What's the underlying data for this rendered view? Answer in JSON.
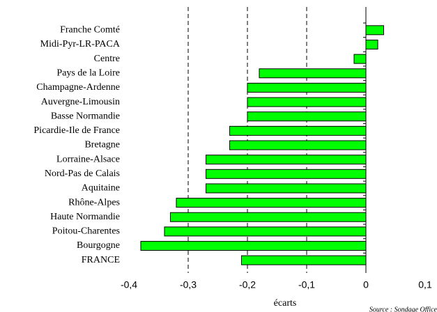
{
  "chart_data": {
    "type": "barh",
    "categories": [
      "Franche Comté",
      "Midi-Pyr-LR-PACA",
      "Centre",
      "Pays de la Loire",
      "Champagne-Ardenne",
      "Auvergne-Limousin",
      "Basse Normandie",
      "Picardie-Ile de France",
      "Bretagne",
      "Lorraine-Alsace",
      "Nord-Pas de Calais",
      "Aquitaine",
      "Rhône-Alpes",
      "Haute Normandie",
      "Poitou-Charentes",
      "Bourgogne",
      "FRANCE"
    ],
    "values": [
      0.03,
      0.02,
      -0.02,
      -0.18,
      -0.2,
      -0.2,
      -0.2,
      -0.23,
      -0.23,
      -0.27,
      -0.27,
      -0.27,
      -0.32,
      -0.33,
      -0.34,
      -0.38,
      -0.21
    ],
    "color": "#00ff00",
    "xlim": [
      -0.4,
      0.1
    ],
    "xticks": [
      {
        "value": -0.4,
        "label": "-0,4"
      },
      {
        "value": -0.3,
        "label": "-0,3"
      },
      {
        "value": -0.2,
        "label": "-0,2"
      },
      {
        "value": -0.1,
        "label": "-0,1"
      },
      0,
      {
        "value": 0.1,
        "label": "0,1"
      }
    ],
    "x_label": "écarts",
    "source": "Source : Sondage Office",
    "grid": true
  }
}
